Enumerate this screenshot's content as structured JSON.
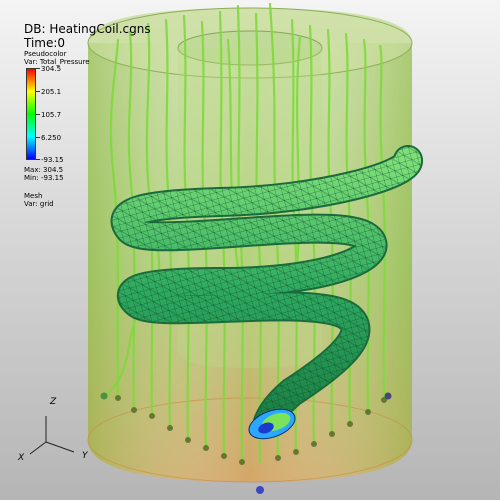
{
  "header": {
    "db_label": "DB: HeatingCoil.cgns",
    "time_label": "Time:0"
  },
  "legend": {
    "plot_type": "Pseudocolor",
    "variable": "Var: Total_Pressure",
    "ticks": [
      "304.5",
      "205.1",
      "105.7",
      "6.250",
      "-93.15"
    ],
    "max_label": "Max: 304.5",
    "min_label": "Min: -93.15",
    "colors": [
      "#ff0000",
      "#ffff00",
      "#00ff00",
      "#00ffff",
      "#0000ff"
    ]
  },
  "mesh_info": {
    "plot_type": "Mesh",
    "variable": "Var: grid"
  },
  "axes": {
    "z": "Z",
    "x": "X",
    "y": "Y"
  },
  "colors": {
    "background_top": "#f2f2f2",
    "background_bottom": "#b8b8b8",
    "cylinder_fill": "#9ac66a",
    "coil_fill": "#2fb062",
    "streamline": "#7fd93e"
  }
}
